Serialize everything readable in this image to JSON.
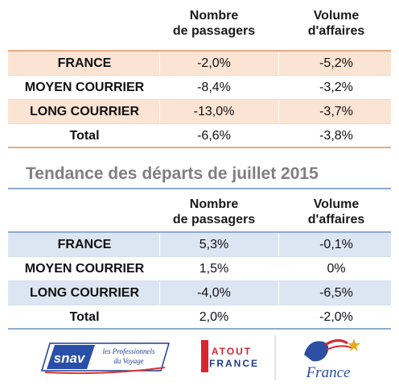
{
  "col_headers": {
    "passengers_line1": "Nombre",
    "passengers_line2": "de passagers",
    "volume_line1": "Volume",
    "volume_line2": "d'affaires"
  },
  "table1": {
    "rows": [
      {
        "label": "FRANCE",
        "passengers": "-2,0%",
        "volume": "-5,2%"
      },
      {
        "label": "MOYEN COURRIER",
        "passengers": "-8,4%",
        "volume": "-3,2%"
      },
      {
        "label": "LONG COURRIER",
        "passengers": "-13,0%",
        "volume": "-3,7%"
      },
      {
        "label": "Total",
        "passengers": "-6,6%",
        "volume": "-3,8%"
      }
    ]
  },
  "table2": {
    "title": "Tendance des départs de juillet 2015",
    "rows": [
      {
        "label": "FRANCE",
        "passengers": "5,3%",
        "volume": "-0,1%"
      },
      {
        "label": "MOYEN COURRIER",
        "passengers": "1,5%",
        "volume": "0%"
      },
      {
        "label": "LONG COURRIER",
        "passengers": "-4,0%",
        "volume": "-6,5%"
      },
      {
        "label": "Total",
        "passengers": "2,0%",
        "volume": "-2,0%"
      }
    ]
  },
  "logos": {
    "snav_mark": "snav",
    "snav_tagline_1": "les Professionnels",
    "snav_tagline_2": "du Voyage",
    "atout_line1": "ATOUT",
    "atout_line2": "FRANCE",
    "france_script": "France"
  },
  "colors": {
    "table1_shade": "#fbe4d4",
    "table1_rule": "#e8a983",
    "table2_shade": "#dce6f2",
    "table2_rule": "#8eaad0",
    "title_gray": "#7f7f7f"
  }
}
